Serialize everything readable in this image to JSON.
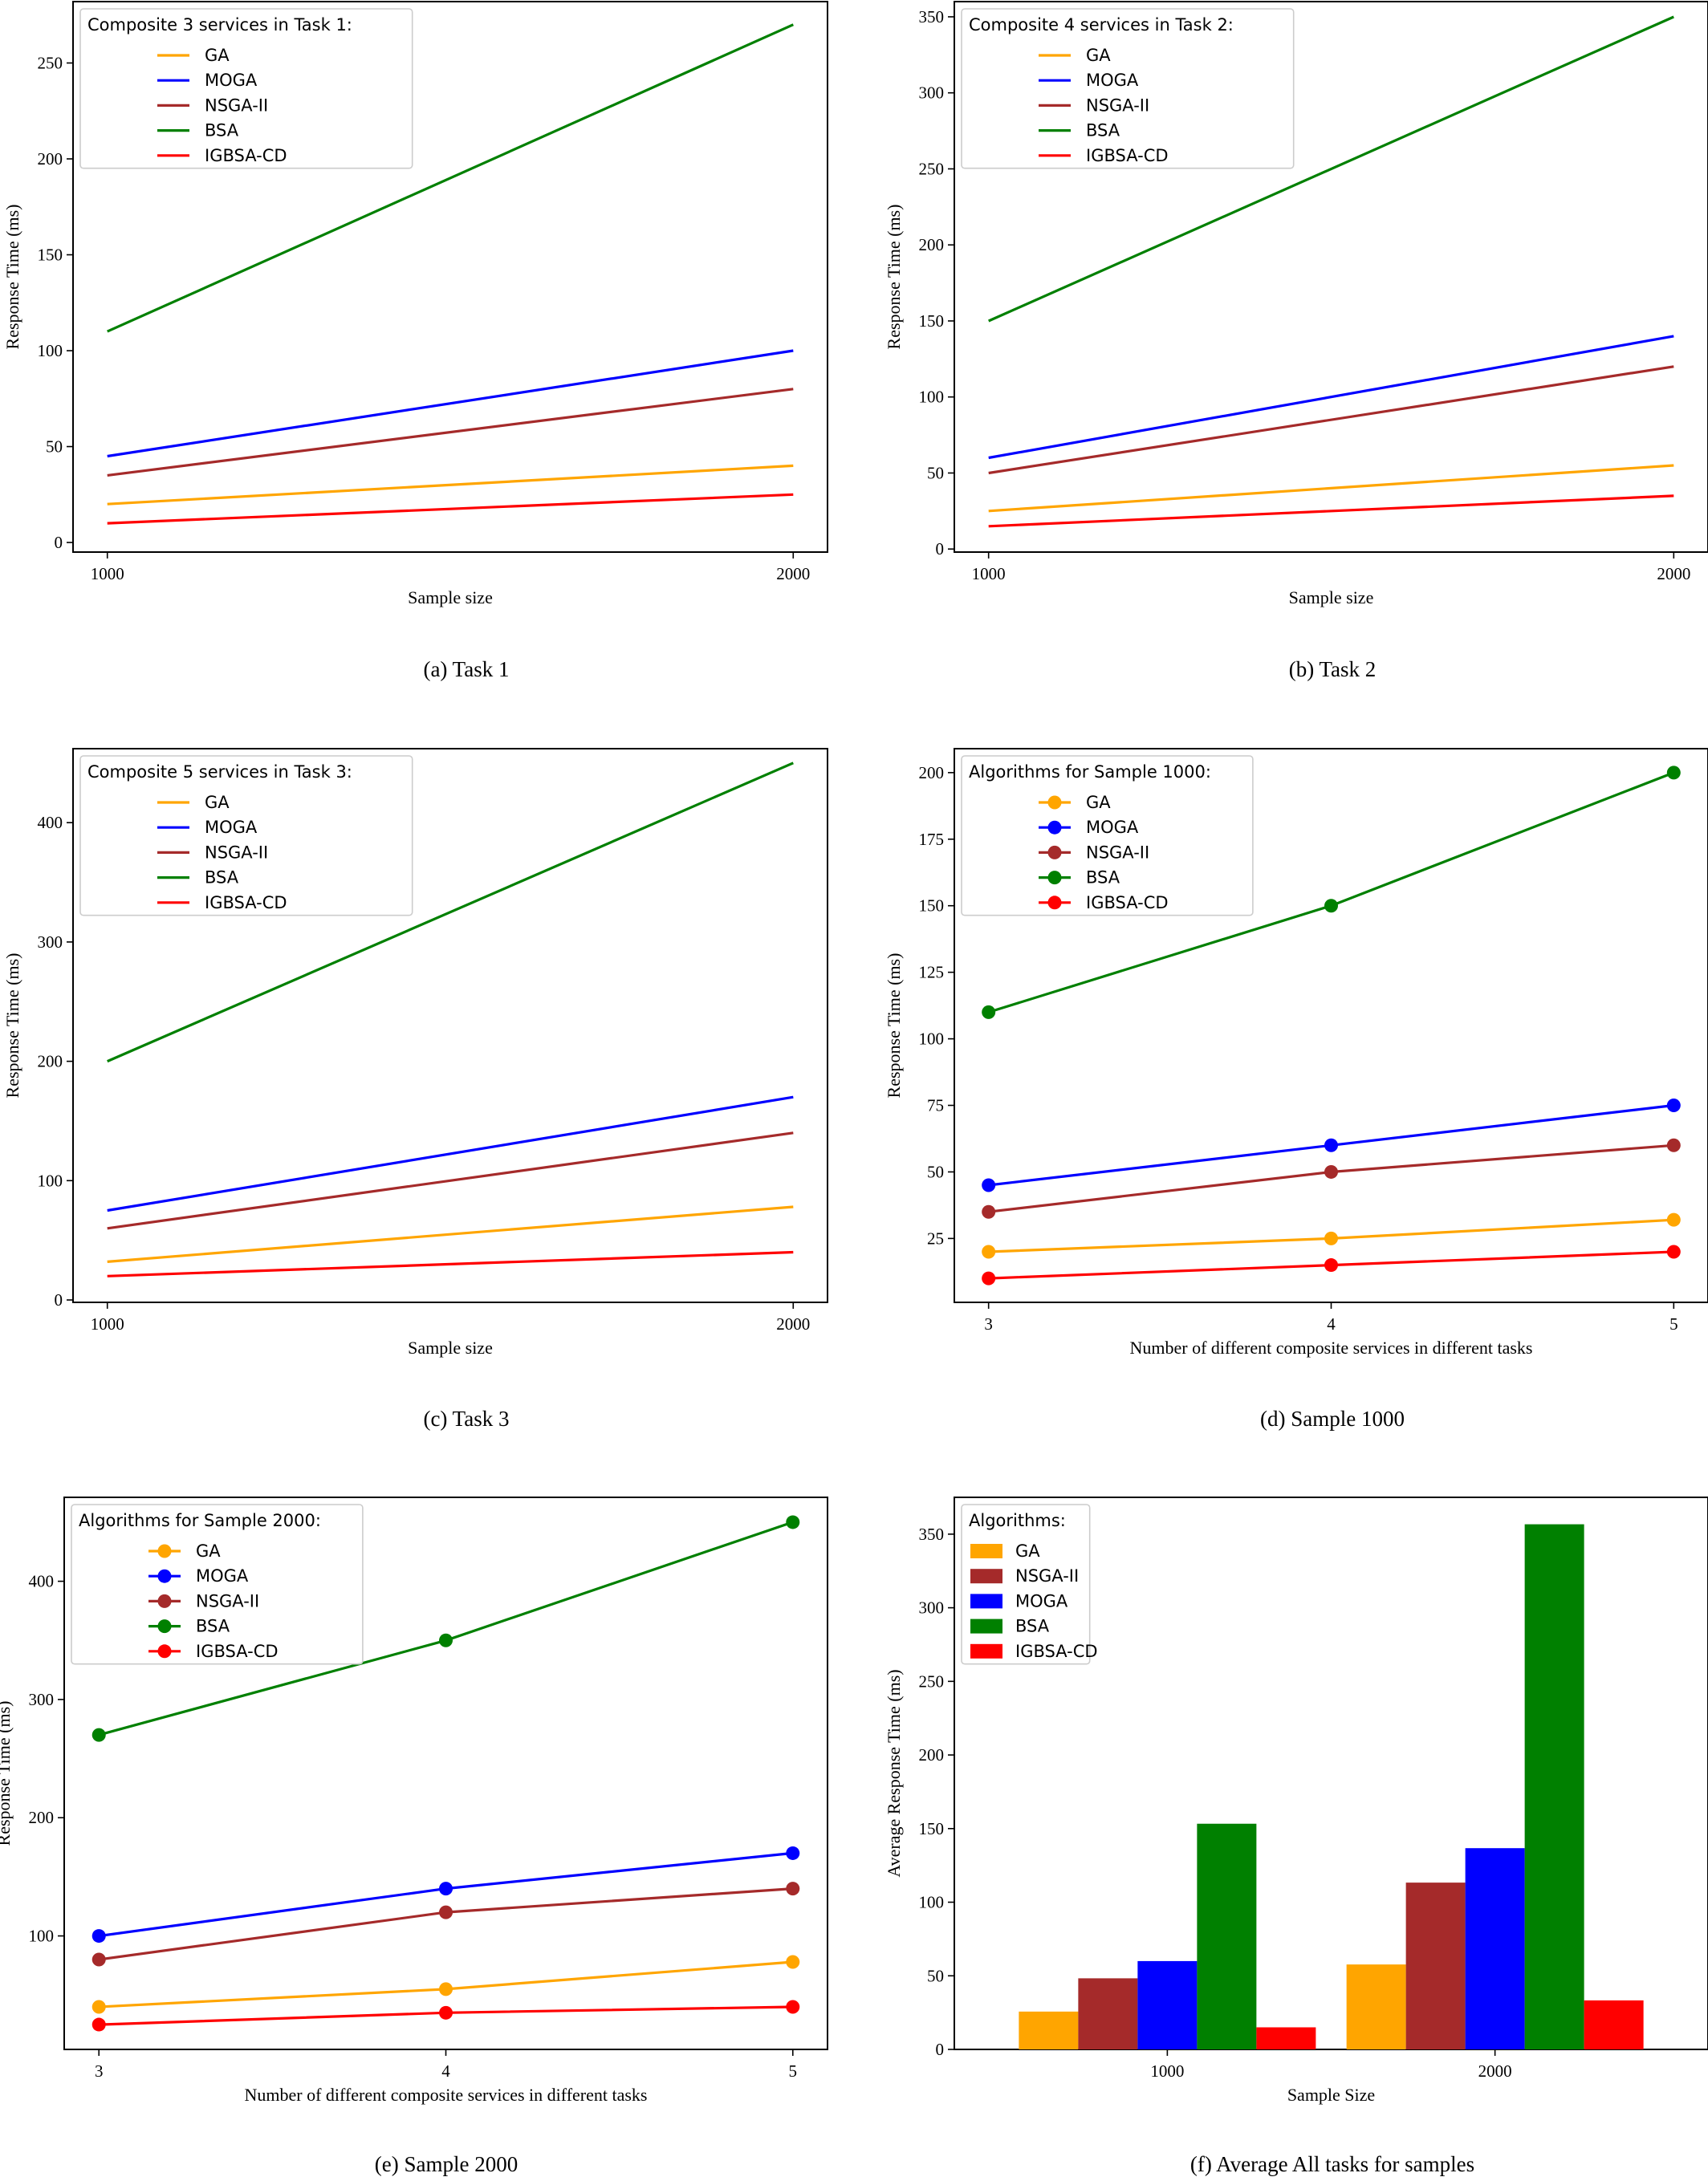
{
  "colors": {
    "GA": "#ffa500",
    "MOGA": "#0000ff",
    "NSGA-II": "#a52a2a",
    "BSA": "#008000",
    "IGBSA-CD": "#ff0000"
  },
  "chart_data": [
    {
      "type": "line",
      "caption": "(a) Task 1",
      "xlabel": "Sample size",
      "ylabel": "Response Time (ms)",
      "x": [
        1000,
        2000
      ],
      "xticks": [
        1000,
        2000
      ],
      "xlim": [
        950,
        2050
      ],
      "ylim": [
        -5,
        282
      ],
      "yticks": [
        0,
        50,
        100,
        150,
        200,
        250
      ],
      "markers": false,
      "legend_title": "Composite 3 services in Task 1:",
      "legend_position": "upper-left",
      "series": [
        {
          "name": "GA",
          "values": [
            20,
            40
          ]
        },
        {
          "name": "MOGA",
          "values": [
            45,
            100
          ]
        },
        {
          "name": "NSGA-II",
          "values": [
            35,
            80
          ]
        },
        {
          "name": "BSA",
          "values": [
            110,
            270
          ]
        },
        {
          "name": "IGBSA-CD",
          "values": [
            10,
            25
          ]
        }
      ]
    },
    {
      "type": "line",
      "caption": "(b) Task 2",
      "xlabel": "Sample size",
      "ylabel": "Response Time (ms)",
      "x": [
        1000,
        2000
      ],
      "xticks": [
        1000,
        2000
      ],
      "xlim": [
        950,
        2050
      ],
      "ylim": [
        -2,
        360
      ],
      "yticks": [
        0,
        50,
        100,
        150,
        200,
        250,
        300,
        350
      ],
      "markers": false,
      "legend_title": "Composite 4 services in Task 2:",
      "legend_position": "upper-left",
      "series": [
        {
          "name": "GA",
          "values": [
            25,
            55
          ]
        },
        {
          "name": "MOGA",
          "values": [
            60,
            140
          ]
        },
        {
          "name": "NSGA-II",
          "values": [
            50,
            120
          ]
        },
        {
          "name": "BSA",
          "values": [
            150,
            350
          ]
        },
        {
          "name": "IGBSA-CD",
          "values": [
            15,
            35
          ]
        }
      ]
    },
    {
      "type": "line",
      "caption": "(c) Task 3",
      "xlabel": "Sample size",
      "ylabel": "Response Time (ms)",
      "x": [
        1000,
        2000
      ],
      "xticks": [
        1000,
        2000
      ],
      "xlim": [
        950,
        2050
      ],
      "ylim": [
        -2,
        462
      ],
      "yticks": [
        0,
        100,
        200,
        300,
        400
      ],
      "markers": false,
      "legend_title": "Composite 5 services in Task 3:",
      "legend_position": "upper-left",
      "series": [
        {
          "name": "GA",
          "values": [
            32,
            78
          ]
        },
        {
          "name": "MOGA",
          "values": [
            75,
            170
          ]
        },
        {
          "name": "NSGA-II",
          "values": [
            60,
            140
          ]
        },
        {
          "name": "BSA",
          "values": [
            200,
            450
          ]
        },
        {
          "name": "IGBSA-CD",
          "values": [
            20,
            40
          ]
        }
      ]
    },
    {
      "type": "line",
      "caption": "(d) Sample 1000",
      "xlabel": "Number of different composite services in different tasks",
      "ylabel": "Response Time (ms)",
      "x": [
        3,
        4,
        5
      ],
      "xticks": [
        3,
        4,
        5
      ],
      "xlim": [
        2.9,
        5.1
      ],
      "ylim": [
        1,
        209
      ],
      "yticks": [
        25,
        50,
        75,
        100,
        125,
        150,
        175,
        200
      ],
      "markers": true,
      "legend_title": "Algorithms for Sample 1000:",
      "legend_position": "upper-left",
      "series": [
        {
          "name": "GA",
          "values": [
            20,
            25,
            32
          ]
        },
        {
          "name": "MOGA",
          "values": [
            45,
            60,
            75
          ]
        },
        {
          "name": "NSGA-II",
          "values": [
            35,
            50,
            60
          ]
        },
        {
          "name": "BSA",
          "values": [
            110,
            150,
            200
          ]
        },
        {
          "name": "IGBSA-CD",
          "values": [
            10,
            15,
            20
          ]
        }
      ]
    },
    {
      "type": "line",
      "caption": "(e) Sample 2000",
      "xlabel": "Number of different composite services in different tasks",
      "ylabel": "Response Time (ms)",
      "x": [
        3,
        4,
        5
      ],
      "xticks": [
        3,
        4,
        5
      ],
      "xlim": [
        2.9,
        5.1
      ],
      "ylim": [
        4,
        471
      ],
      "yticks": [
        100,
        200,
        300,
        400
      ],
      "markers": true,
      "legend_title": "Algorithms for Sample 2000:",
      "legend_position": "upper-left",
      "series": [
        {
          "name": "GA",
          "values": [
            40,
            55,
            78
          ]
        },
        {
          "name": "MOGA",
          "values": [
            100,
            140,
            170
          ]
        },
        {
          "name": "NSGA-II",
          "values": [
            80,
            120,
            140
          ]
        },
        {
          "name": "BSA",
          "values": [
            270,
            350,
            450
          ]
        },
        {
          "name": "IGBSA-CD",
          "values": [
            25,
            35,
            40
          ]
        }
      ]
    },
    {
      "type": "bar",
      "caption": "(f) Average All tasks for samples",
      "xlabel": "Sample Size",
      "ylabel": "Average Response Time (ms)",
      "categories": [
        "1000",
        "2000"
      ],
      "ylim": [
        0,
        375
      ],
      "yticks": [
        0,
        50,
        100,
        150,
        200,
        250,
        300,
        350
      ],
      "legend_title": "Algorithms:",
      "legend_position": "upper-left",
      "series": [
        {
          "name": "GA",
          "values": [
            25.7,
            57.7
          ]
        },
        {
          "name": "NSGA-II",
          "values": [
            48.3,
            113.3
          ]
        },
        {
          "name": "MOGA",
          "values": [
            60,
            136.7
          ]
        },
        {
          "name": "BSA",
          "values": [
            153.3,
            356.7
          ]
        },
        {
          "name": "IGBSA-CD",
          "values": [
            15,
            33.3
          ]
        }
      ]
    }
  ]
}
